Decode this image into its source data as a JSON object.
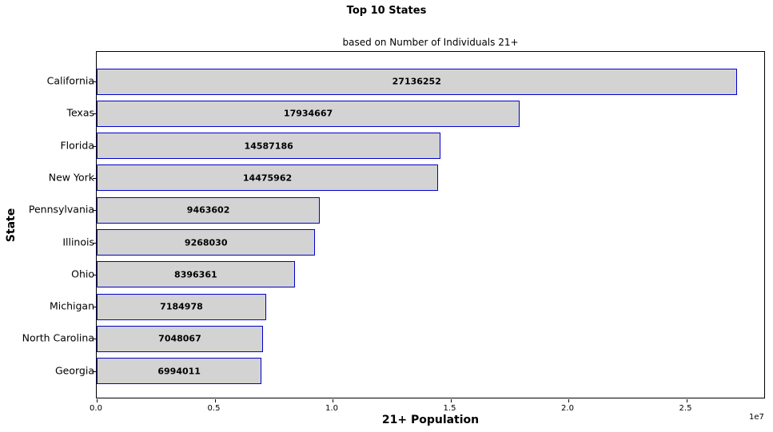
{
  "chart_data": {
    "type": "bar",
    "orientation": "horizontal",
    "title": "Top 10 States",
    "subtitle": "based on Number of Individuals 21+",
    "xlabel": "21+ Population",
    "ylabel": "State",
    "x_offset_label": "1e7",
    "xlim": [
      0,
      28500000
    ],
    "x_ticks": [
      0,
      5000000,
      10000000,
      15000000,
      20000000,
      25000000
    ],
    "x_tick_labels": [
      "0.0",
      "0.5",
      "1.0",
      "1.5",
      "2.0",
      "2.5"
    ],
    "categories": [
      "California",
      "Texas",
      "Florida",
      "New York",
      "Pennsylvania",
      "Illinois",
      "Ohio",
      "Michigan",
      "North Carolina",
      "Georgia"
    ],
    "values": [
      27136252,
      17934667,
      14587186,
      14475962,
      9463602,
      9268030,
      8396361,
      7184978,
      7048067,
      6994011
    ],
    "bar_labels": [
      "27136252",
      "17934667",
      "14587186",
      "14475962",
      "9463602",
      "9268030",
      "8396361",
      "7184978",
      "7048067",
      "6994011"
    ],
    "colors": {
      "bar_fill": "#d3d3d3",
      "bar_edge": "#0000cc"
    },
    "grid": false,
    "legend": null
  }
}
